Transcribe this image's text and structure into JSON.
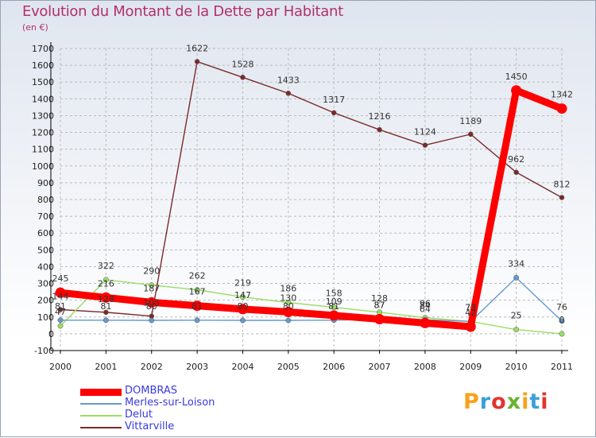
{
  "header": {
    "title": "Evolution du Montant de la Dette par Habitant",
    "subtitle": "(en €)"
  },
  "colors": {
    "title": "#b2306a",
    "legend_text": "#3a3ae0",
    "grid": "#bbbbbb",
    "axis": "#000000"
  },
  "chart_data": {
    "type": "line",
    "title": "Evolution du Montant de la Dette par Habitant",
    "ylabel": "(en €)",
    "xlabel": "",
    "x": [
      2000,
      2001,
      2002,
      2003,
      2004,
      2005,
      2006,
      2007,
      2008,
      2009,
      2010,
      2011
    ],
    "ylim": [
      -100,
      1700
    ],
    "ytick_step": 100,
    "grid": true,
    "series": [
      {
        "name": "DOMBRAS",
        "color": "#ff0000",
        "values": [
          245,
          216,
          187,
          167,
          147,
          130,
          109,
          87,
          64,
          42,
          1450,
          1342
        ]
      },
      {
        "name": "Merles-sur-Loison",
        "color": "#6699cc",
        "values": [
          81,
          81,
          80,
          81,
          80,
          80,
          81,
          87,
          84,
          73,
          334,
          76
        ]
      },
      {
        "name": "Delut",
        "color": "#99dd66",
        "values": [
          47,
          322,
          290,
          262,
          219,
          186,
          158,
          128,
          96,
          73,
          25,
          0
        ]
      },
      {
        "name": "Vittarville",
        "color": "#7a2a2a",
        "values": [
          144,
          128,
          105,
          1622,
          1528,
          1433,
          1317,
          1216,
          1124,
          1189,
          962,
          812
        ]
      }
    ]
  },
  "legend": {
    "items": [
      "DOMBRAS",
      "Merles-sur-Loison",
      "Delut",
      "Vittarville"
    ]
  },
  "logo": {
    "text": "Proxiti",
    "letters": [
      "P",
      "r",
      "o",
      "x",
      "i",
      "t",
      "i"
    ],
    "letter_colors": [
      "#f7a21b",
      "#3aa0d8",
      "#e3342f",
      "#66b32e",
      "#f7a21b",
      "#3aa0d8",
      "#e3342f"
    ]
  }
}
